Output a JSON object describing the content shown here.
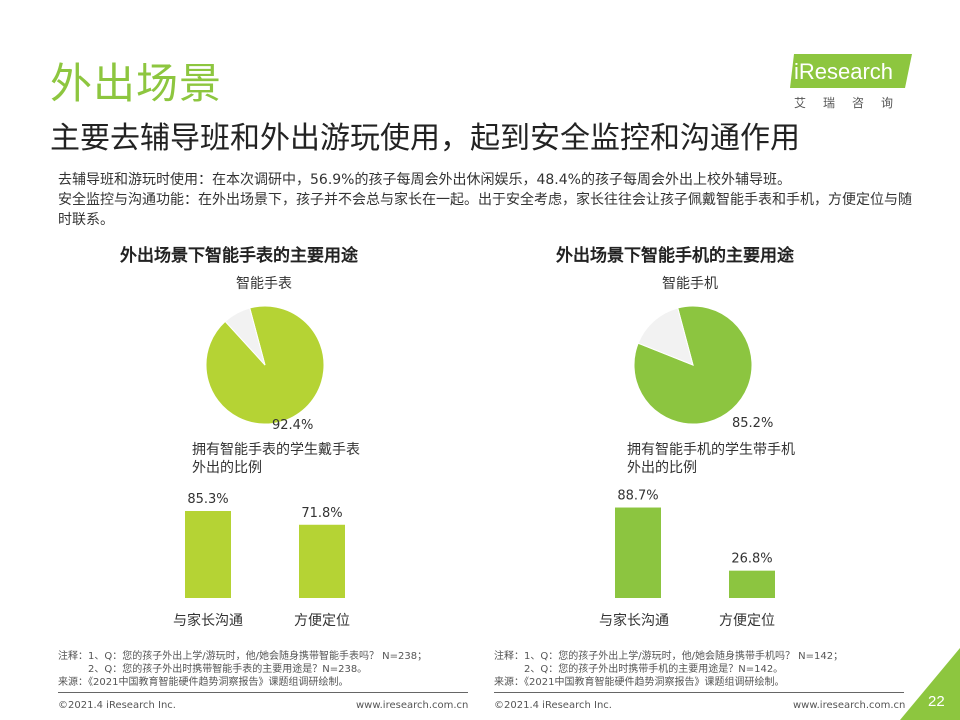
{
  "header": {
    "title": "外出场景",
    "subtitle": "主要去辅导班和外出游玩使用，起到安全监控和沟通作用"
  },
  "logo": {
    "text": "iResearch",
    "cn": "艾瑞咨询"
  },
  "intro": {
    "line1": "去辅导班和游玩时使用：在本次调研中，56.9%的孩子每周会外出休闲娱乐，48.4%的孩子每周会外出上校外辅导班。",
    "line2": "安全监控与沟通功能：在外出场景下，孩子并不会总与家长在一起。出于安全考虑，家长往往会让孩子佩戴智能手表和手机，方便定位与随时联系。"
  },
  "colors": {
    "accent_green": "#8dc63f",
    "watch_green": "#b5d334",
    "phone_green": "#8cc540",
    "pie_rest": "#f2f2f2"
  },
  "chart_data": [
    {
      "type": "pie",
      "title": "外出场景下智能手表的主要用途",
      "pie_title": "智能手表",
      "value": 92.4,
      "value_label": "92.4%",
      "description": "拥有智能手表的学生戴手表外出的比例"
    },
    {
      "type": "bar",
      "categories": [
        "与家长沟通",
        "方便定位"
      ],
      "values": [
        85.3,
        71.8
      ],
      "value_labels": [
        "85.3%",
        "71.8%"
      ],
      "ylim": [
        0,
        100
      ]
    },
    {
      "type": "pie",
      "title": "外出场景下智能手机的主要用途",
      "pie_title": "智能手机",
      "value": 85.2,
      "value_label": "85.2%",
      "description": "拥有智能手机的学生带手机外出的比例"
    },
    {
      "type": "bar",
      "categories": [
        "与家长沟通",
        "方便定位"
      ],
      "values": [
        88.7,
        26.8
      ],
      "value_labels": [
        "88.7%",
        "26.8%"
      ],
      "ylim": [
        0,
        100
      ]
    }
  ],
  "notes": {
    "left": {
      "line1": "注释：1、Q：您的孩子外出上学/游玩时，他/她会随身携带智能手表吗？ N=238；",
      "line2": "2、Q：您的孩子外出时携带智能手表的主要用途是？N=238。",
      "source": "来源：《2021中国教育智能硬件趋势洞察报告》课题组调研绘制。"
    },
    "right": {
      "line1": "注释：1、Q：您的孩子外出上学/游玩时，他/她会随身携带手机吗？ N=142；",
      "line2": "2、Q：您的孩子外出时携带手机的主要用途是？N=142。",
      "source": "来源：《2021中国教育智能硬件趋势洞察报告》课题组调研绘制。"
    }
  },
  "footer": {
    "copyright_left": "©2021.4 iResearch Inc.",
    "url_left": "www.iresearch.com.cn",
    "copyright_right": "©2021.4 iResearch Inc.",
    "url_right": "www.iresearch.com.cn",
    "page_number": "22"
  }
}
